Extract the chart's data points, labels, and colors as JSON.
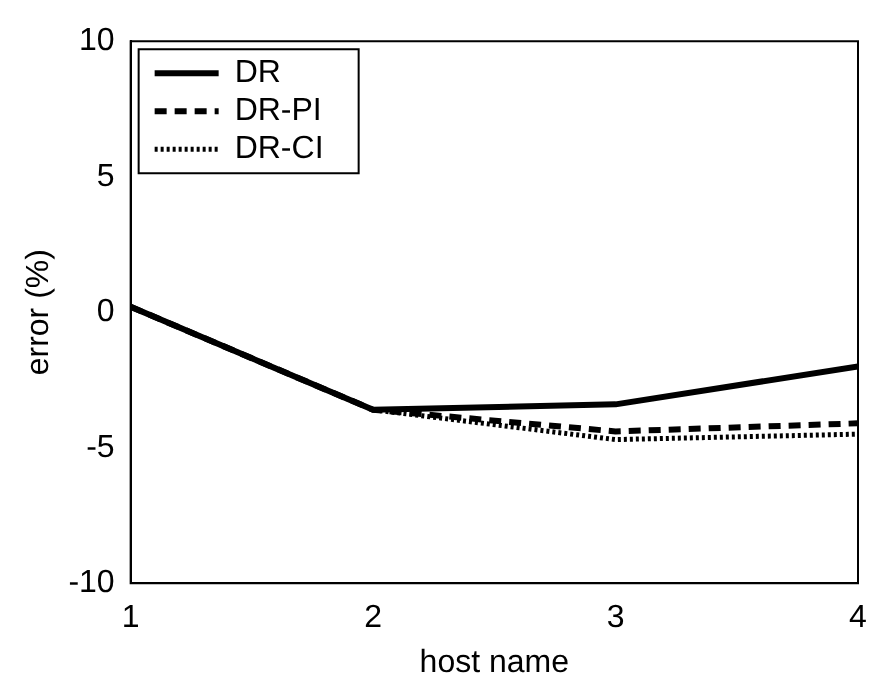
{
  "chart_data": {
    "type": "line",
    "xlabel": "host name",
    "ylabel": "error (%)",
    "x": [
      1,
      2,
      3,
      4
    ],
    "xlim": [
      1,
      4
    ],
    "xticks": [
      1,
      2,
      3,
      4
    ],
    "ylim": [
      -10,
      10
    ],
    "yticks": [
      -10,
      -5,
      0,
      5,
      10
    ],
    "grid": false,
    "legend": "top left",
    "marker": "none",
    "series": [
      {
        "name": "DR",
        "color": "#000000",
        "line_style": "solid",
        "values": [
          0.2,
          -3.6,
          -3.4,
          -2.0
        ]
      },
      {
        "name": "DR-PI",
        "color": "#000000",
        "line_style": "dashed",
        "values": [
          0.2,
          -3.6,
          -4.4,
          -4.1
        ]
      },
      {
        "name": "DR-CI",
        "color": "#000000",
        "line_style": "dotted",
        "values": [
          0.2,
          -3.6,
          -4.7,
          -4.5
        ]
      }
    ]
  }
}
